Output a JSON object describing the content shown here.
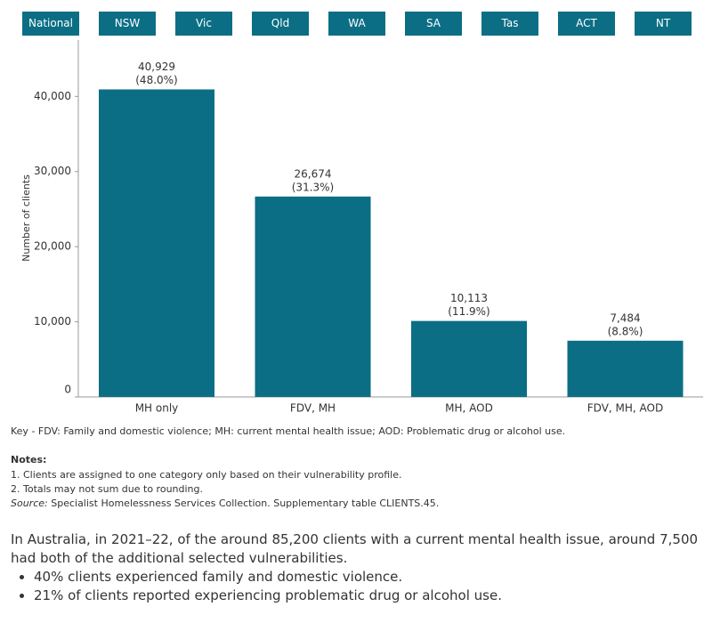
{
  "tabs": [
    "National",
    "NSW",
    "Vic",
    "Qld",
    "WA",
    "SA",
    "Tas",
    "ACT",
    "NT"
  ],
  "chart_data": {
    "type": "bar",
    "y_label": "Number of clients",
    "categories": [
      "MH only",
      "FDV, MH",
      "MH, AOD",
      "FDV, MH, AOD"
    ],
    "values": [
      40929,
      26674,
      10113,
      7484
    ],
    "value_labels": [
      "40,929",
      "26,674",
      "10,113",
      "7,484"
    ],
    "share_labels": [
      "(48.0%)",
      "(31.3%)",
      "(11.9%)",
      "(8.8%)"
    ],
    "color": "#0b6e85",
    "ylim": [
      0,
      47500
    ],
    "yticks": [
      0,
      {
        "value": 10000,
        "label": "10,000"
      },
      {
        "value": 20000,
        "label": "20,000"
      },
      {
        "value": 30000,
        "label": "30,000"
      },
      {
        "value": 40000,
        "label": "40,000"
      }
    ],
    "grid": false
  },
  "key": "Key - FDV: Family and domestic violence; MH: current mental health issue; AOD: Problematic drug or alcohol use.",
  "notes": {
    "title": "Notes:",
    "items": [
      "1. Clients are assigned to one category only based on their vulnerability profile.",
      "2. Totals may not sum due to rounding."
    ],
    "source_label": "Source:",
    "source": "Specialist Homelessness Services Collection. Supplementary table CLIENTS.45."
  },
  "summary": {
    "text": "In Australia, in 2021–22, of the around 85,200 clients with a current mental health issue, around 7,500 had both of the additional selected vulnerabilities.",
    "bullets": [
      "40% clients experienced family and domestic violence.",
      "21% of clients reported experiencing problematic drug or alcohol use."
    ]
  }
}
